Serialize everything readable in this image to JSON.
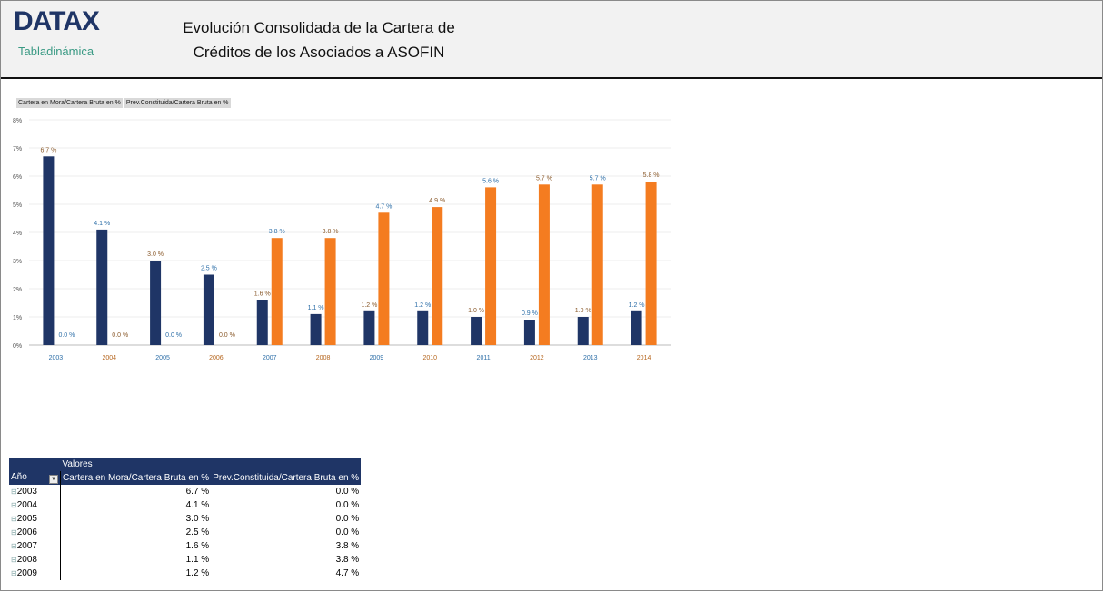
{
  "header": {
    "logo": "DATAX",
    "subtitle": "Tabladinámica",
    "title_line1": "Evolución Consolidada de la Cartera de",
    "title_line2": "Créditos de los Asociados a ASOFIN"
  },
  "chart_data": {
    "type": "bar",
    "categories": [
      "2003",
      "2004",
      "2005",
      "2006",
      "2007",
      "2008",
      "2009",
      "2010",
      "2011",
      "2012",
      "2013",
      "2014"
    ],
    "series": [
      {
        "name": "Cartera en Mora/Cartera Bruta en %",
        "color": "#1f3566",
        "values": [
          6.7,
          4.1,
          3.0,
          2.5,
          1.6,
          1.1,
          1.2,
          1.2,
          1.0,
          0.9,
          1.0,
          1.2
        ]
      },
      {
        "name": "Prev.Constituida/Cartera Bruta en %",
        "color": "#f47c20",
        "values": [
          0.0,
          0.0,
          0.0,
          0.0,
          3.8,
          3.8,
          4.7,
          4.9,
          5.6,
          5.7,
          5.7,
          5.8
        ]
      }
    ],
    "yticks": [
      "0%",
      "1%",
      "2%",
      "3%",
      "4%",
      "5%",
      "6%",
      "7%",
      "8%"
    ],
    "ylim": [
      0,
      8
    ],
    "grid": true,
    "legend": "top-left"
  },
  "table": {
    "valores_label": "Valores",
    "col_year": "Año",
    "col1": "Cartera en Mora/Cartera Bruta en %",
    "col2": "Prev.Constituida/Cartera Bruta en %",
    "rows": [
      {
        "year": "2003",
        "v1": "6.7 %",
        "v2": "0.0 %"
      },
      {
        "year": "2004",
        "v1": "4.1 %",
        "v2": "0.0 %"
      },
      {
        "year": "2005",
        "v1": "3.0 %",
        "v2": "0.0 %"
      },
      {
        "year": "2006",
        "v1": "2.5 %",
        "v2": "0.0 %"
      },
      {
        "year": "2007",
        "v1": "1.6 %",
        "v2": "3.8 %"
      },
      {
        "year": "2008",
        "v1": "1.1 %",
        "v2": "3.8 %"
      },
      {
        "year": "2009",
        "v1": "1.2 %",
        "v2": "4.7 %"
      }
    ]
  }
}
